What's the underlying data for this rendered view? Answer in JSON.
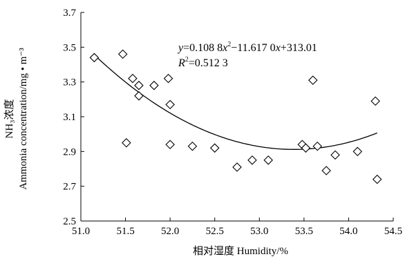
{
  "chart_data": {
    "type": "scatter",
    "xlabel": "相对湿度 Humidity/%",
    "ylabel_line1": "NH₃浓度",
    "ylabel_line2": "Ammonia concentration/mg • m⁻³",
    "xlim": [
      51.0,
      54.5
    ],
    "ylim": [
      2.5,
      3.7
    ],
    "xticks": [
      "51.0",
      "51.5",
      "52.0",
      "52.5",
      "53.0",
      "53.5",
      "54.0",
      "54.5"
    ],
    "yticks": [
      "2.5",
      "2.7",
      "2.9",
      "3.1",
      "3.3",
      "3.5",
      "3.7"
    ],
    "marker": "open-diamond",
    "points": [
      {
        "x": 51.15,
        "y": 3.44
      },
      {
        "x": 51.47,
        "y": 3.46
      },
      {
        "x": 51.51,
        "y": 2.95
      },
      {
        "x": 51.58,
        "y": 3.32
      },
      {
        "x": 51.65,
        "y": 3.28
      },
      {
        "x": 51.65,
        "y": 3.22
      },
      {
        "x": 51.82,
        "y": 3.28
      },
      {
        "x": 51.98,
        "y": 3.32
      },
      {
        "x": 52.0,
        "y": 3.17
      },
      {
        "x": 52.0,
        "y": 2.94
      },
      {
        "x": 52.25,
        "y": 2.93
      },
      {
        "x": 52.5,
        "y": 2.92
      },
      {
        "x": 52.75,
        "y": 2.81
      },
      {
        "x": 52.92,
        "y": 2.85
      },
      {
        "x": 53.1,
        "y": 2.85
      },
      {
        "x": 53.48,
        "y": 2.94
      },
      {
        "x": 53.52,
        "y": 2.92
      },
      {
        "x": 53.6,
        "y": 3.31
      },
      {
        "x": 53.65,
        "y": 2.93
      },
      {
        "x": 53.75,
        "y": 2.79
      },
      {
        "x": 53.85,
        "y": 2.88
      },
      {
        "x": 54.1,
        "y": 2.9
      },
      {
        "x": 54.3,
        "y": 3.19
      },
      {
        "x": 54.32,
        "y": 2.74
      }
    ],
    "trendline": {
      "type": "polynomial",
      "a": 0.1088,
      "b": -11.617,
      "c": 313.01,
      "x_range": [
        51.15,
        54.32
      ]
    },
    "annotation": {
      "y_var": "y",
      "eq_part1": "=0.108 8",
      "x_var1": "x",
      "sup2": "2",
      "eq_part2": "−11.617 0",
      "x_var2": "x",
      "eq_part3": "+313.01",
      "r_var": "R",
      "r_part": "=0.512 3"
    }
  }
}
